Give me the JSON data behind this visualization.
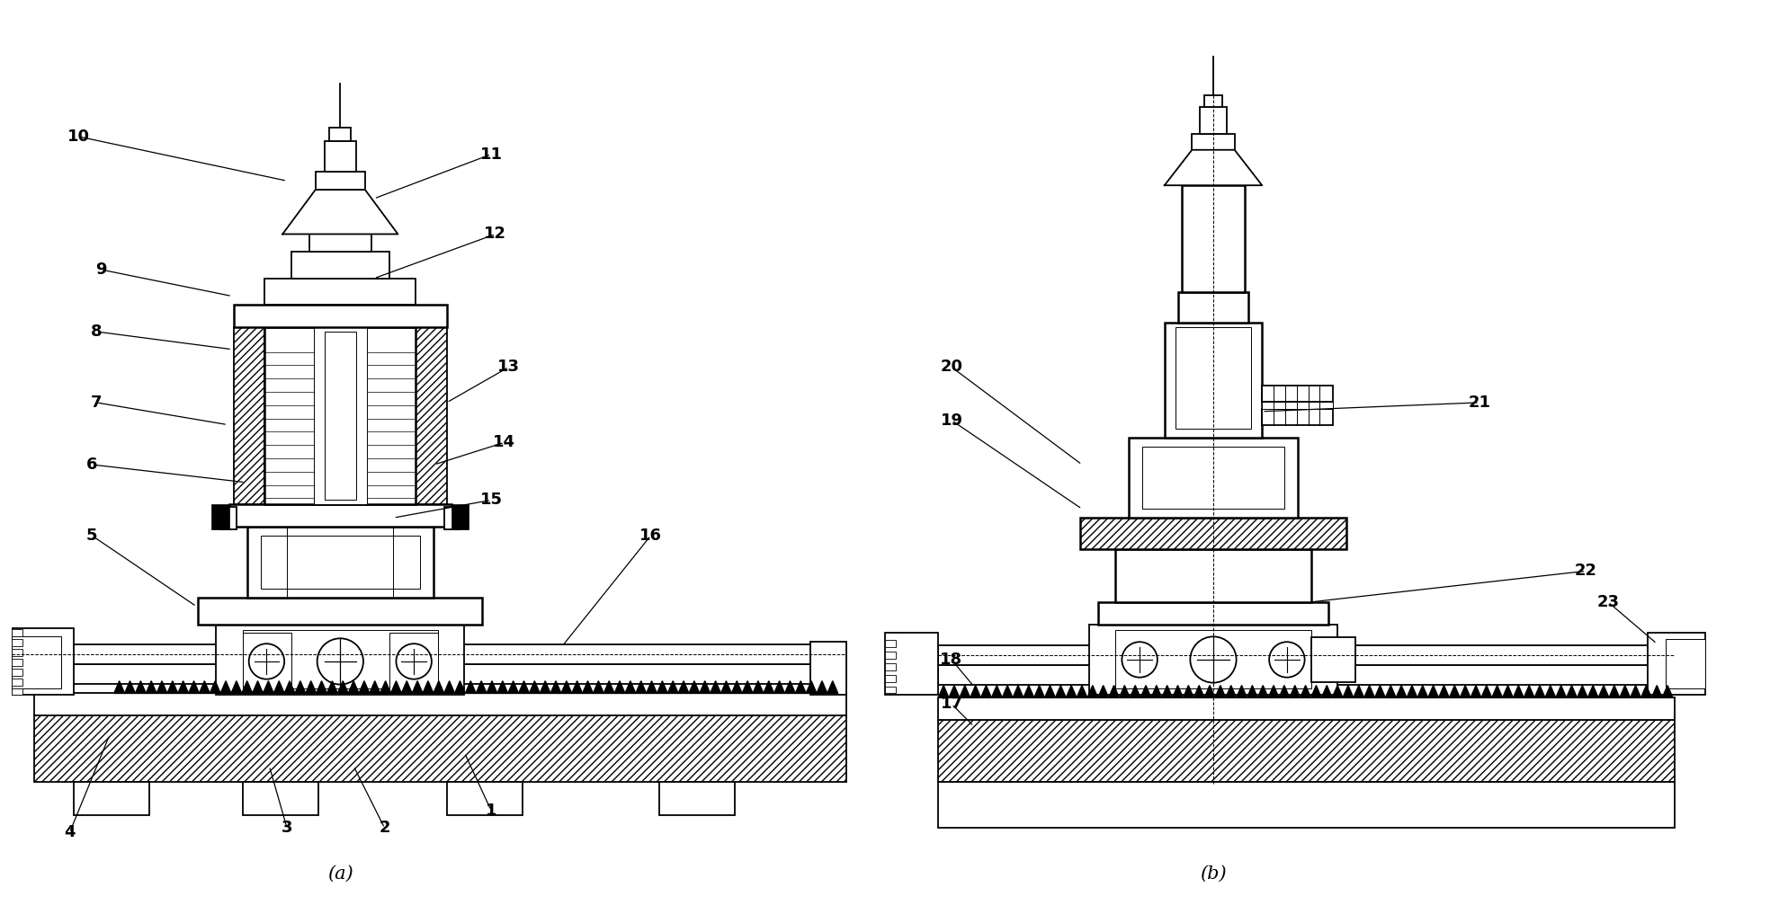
{
  "bg_color": "#ffffff",
  "fig_width": 19.68,
  "fig_height": 10.27,
  "label_a": "(a)",
  "label_b": "(b)"
}
